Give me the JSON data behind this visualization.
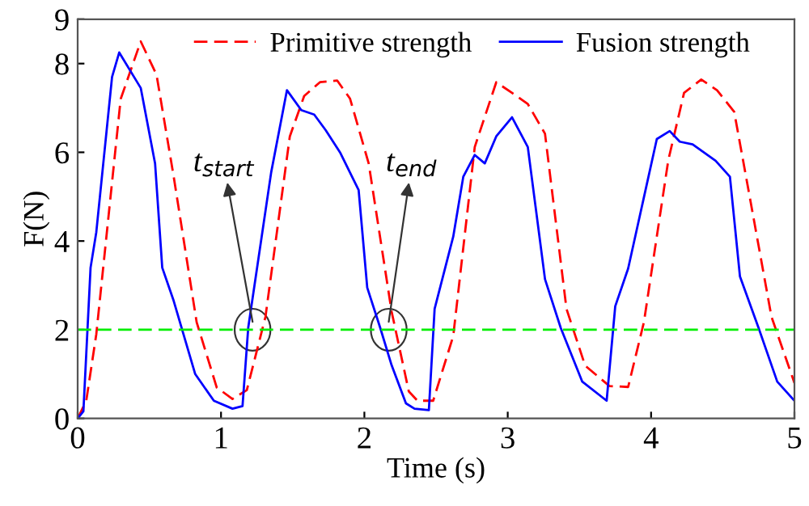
{
  "chart_data": {
    "type": "line",
    "xlabel": "Time (s)",
    "ylabel": "F(N)",
    "xlim": [
      0,
      5
    ],
    "xticks": [
      0,
      1,
      2,
      3,
      4,
      5
    ],
    "ylim": [
      0,
      9
    ],
    "yticks": [
      0,
      2,
      4,
      6,
      8,
      9
    ],
    "legend": "top",
    "grid": false,
    "series": [
      {
        "name": "Primitive strength",
        "color": "#ff0000",
        "line_style": "dashed",
        "x": [
          0,
          0.06,
          0.13,
          0.3,
          0.44,
          0.55,
          0.67,
          0.83,
          0.97,
          1.08,
          1.18,
          1.31,
          1.48,
          1.58,
          1.69,
          1.81,
          1.9,
          2.03,
          2.19,
          2.31,
          2.37,
          2.48,
          2.62,
          2.77,
          2.92,
          3.03,
          3.14,
          3.26,
          3.41,
          3.54,
          3.71,
          3.84,
          3.95,
          4.12,
          4.23,
          4.35,
          4.46,
          4.58,
          4.69,
          4.84,
          5.0
        ],
        "values": [
          0,
          0.4,
          1.9,
          7.2,
          8.5,
          7.75,
          5.45,
          2.17,
          0.7,
          0.44,
          0.64,
          2.29,
          6.36,
          7.27,
          7.58,
          7.62,
          7.21,
          5.75,
          2.41,
          0.61,
          0.4,
          0.4,
          1.86,
          6.12,
          7.58,
          7.34,
          7.09,
          6.42,
          2.47,
          1.19,
          0.73,
          0.71,
          2.17,
          5.82,
          7.34,
          7.64,
          7.4,
          6.91,
          4.96,
          2.29,
          0.8
        ]
      },
      {
        "name": "Fusion strength",
        "color": "#0000ff",
        "line_style": "solid",
        "x": [
          0,
          0.04,
          0.09,
          0.13,
          0.24,
          0.29,
          0.44,
          0.54,
          0.59,
          0.67,
          0.82,
          0.95,
          1.08,
          1.15,
          1.19,
          1.35,
          1.46,
          1.56,
          1.65,
          1.73,
          1.83,
          1.96,
          2.02,
          2.11,
          2.19,
          2.29,
          2.35,
          2.45,
          2.49,
          2.62,
          2.69,
          2.77,
          2.84,
          2.92,
          3.03,
          3.14,
          3.26,
          3.37,
          3.52,
          3.69,
          3.75,
          3.84,
          3.94,
          4.04,
          4.13,
          4.2,
          4.29,
          4.45,
          4.55,
          4.62,
          4.75,
          4.88,
          5.0
        ],
        "values": [
          0,
          0.16,
          3.4,
          4.2,
          7.7,
          8.25,
          7.45,
          5.75,
          3.4,
          2.65,
          1.0,
          0.4,
          0.22,
          0.28,
          2.05,
          5.55,
          7.4,
          6.95,
          6.85,
          6.5,
          6.0,
          5.15,
          2.95,
          2.05,
          1.2,
          0.34,
          0.22,
          0.19,
          2.47,
          4.1,
          5.45,
          5.94,
          5.75,
          6.36,
          6.79,
          6.12,
          3.14,
          2.04,
          0.83,
          0.4,
          2.53,
          3.38,
          4.84,
          6.3,
          6.48,
          6.24,
          6.18,
          5.81,
          5.45,
          3.2,
          2.04,
          0.83,
          0.4
        ]
      }
    ],
    "ref_lines": [
      {
        "axis": "y",
        "value": 2,
        "color": "#00ee00",
        "line_style": "dashed"
      }
    ],
    "annotations": [
      {
        "text": "t$_{start}$",
        "x": 1.22,
        "y": 2
      },
      {
        "text": "t$_{end}$",
        "x": 2.17,
        "y": 2
      }
    ]
  }
}
